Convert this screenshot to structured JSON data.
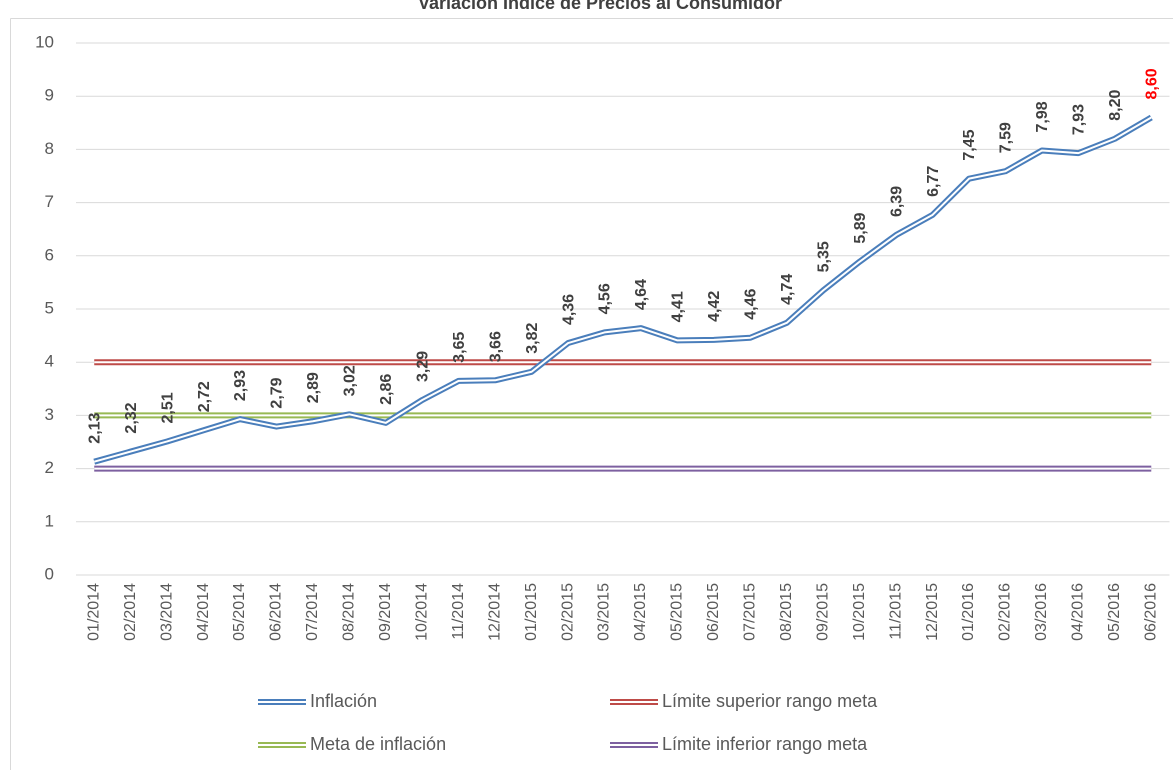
{
  "chart_data": {
    "type": "line",
    "title": "Variación Índice de Precios al Consumidor",
    "categories": [
      "01/2014",
      "02/2014",
      "03/2014",
      "04/2014",
      "05/2014",
      "06/2014",
      "07/2014",
      "08/2014",
      "09/2014",
      "10/2014",
      "11/2014",
      "12/2014",
      "01/2015",
      "02/2015",
      "03/2015",
      "04/2015",
      "05/2015",
      "06/2015",
      "07/2015",
      "08/2015",
      "09/2015",
      "10/2015",
      "11/2015",
      "12/2015",
      "01/2016",
      "02/2016",
      "03/2016",
      "04/2016",
      "05/2016",
      "06/2016"
    ],
    "series": [
      {
        "name": "Inflación",
        "color": "#4a7ebb",
        "values": [
          2.13,
          2.32,
          2.51,
          2.72,
          2.93,
          2.79,
          2.89,
          3.02,
          2.86,
          3.29,
          3.65,
          3.66,
          3.82,
          4.36,
          4.56,
          4.64,
          4.41,
          4.42,
          4.46,
          4.74,
          5.35,
          5.89,
          6.39,
          6.77,
          7.45,
          7.59,
          7.98,
          7.93,
          8.2,
          8.6
        ],
        "value_labels": [
          "2,13",
          "2,32",
          "2,51",
          "2,72",
          "2,93",
          "2,79",
          "2,89",
          "3,02",
          "2,86",
          "3,29",
          "3,65",
          "3,66",
          "3,82",
          "4,36",
          "4,56",
          "4,64",
          "4,41",
          "4,42",
          "4,46",
          "4,74",
          "5,35",
          "5,89",
          "6,39",
          "6,77",
          "7,45",
          "7,59",
          "7,98",
          "7,93",
          "8,20",
          "8,60"
        ],
        "value_label_colors": [
          "#404040",
          "#404040",
          "#404040",
          "#404040",
          "#404040",
          "#404040",
          "#404040",
          "#404040",
          "#404040",
          "#404040",
          "#404040",
          "#404040",
          "#404040",
          "#404040",
          "#404040",
          "#404040",
          "#404040",
          "#404040",
          "#404040",
          "#404040",
          "#404040",
          "#404040",
          "#404040",
          "#404040",
          "#404040",
          "#404040",
          "#404040",
          "#404040",
          "#404040",
          "#ff0000"
        ]
      },
      {
        "name": "Límite superior rango meta",
        "color": "#be4b48",
        "values": [
          4,
          4,
          4,
          4,
          4,
          4,
          4,
          4,
          4,
          4,
          4,
          4,
          4,
          4,
          4,
          4,
          4,
          4,
          4,
          4,
          4,
          4,
          4,
          4,
          4,
          4,
          4,
          4,
          4,
          4
        ]
      },
      {
        "name": "Meta de inflación",
        "color": "#98b954",
        "values": [
          3,
          3,
          3,
          3,
          3,
          3,
          3,
          3,
          3,
          3,
          3,
          3,
          3,
          3,
          3,
          3,
          3,
          3,
          3,
          3,
          3,
          3,
          3,
          3,
          3,
          3,
          3,
          3,
          3,
          3
        ]
      },
      {
        "name": "Límite inferior rango meta",
        "color": "#7d60a0",
        "values": [
          2,
          2,
          2,
          2,
          2,
          2,
          2,
          2,
          2,
          2,
          2,
          2,
          2,
          2,
          2,
          2,
          2,
          2,
          2,
          2,
          2,
          2,
          2,
          2,
          2,
          2,
          2,
          2,
          2,
          2
        ]
      }
    ],
    "ylim": [
      0,
      10
    ],
    "yticks": [
      0,
      1,
      2,
      3,
      4,
      5,
      6,
      7,
      8,
      9,
      10
    ],
    "grid": true,
    "legend": "bottom"
  }
}
